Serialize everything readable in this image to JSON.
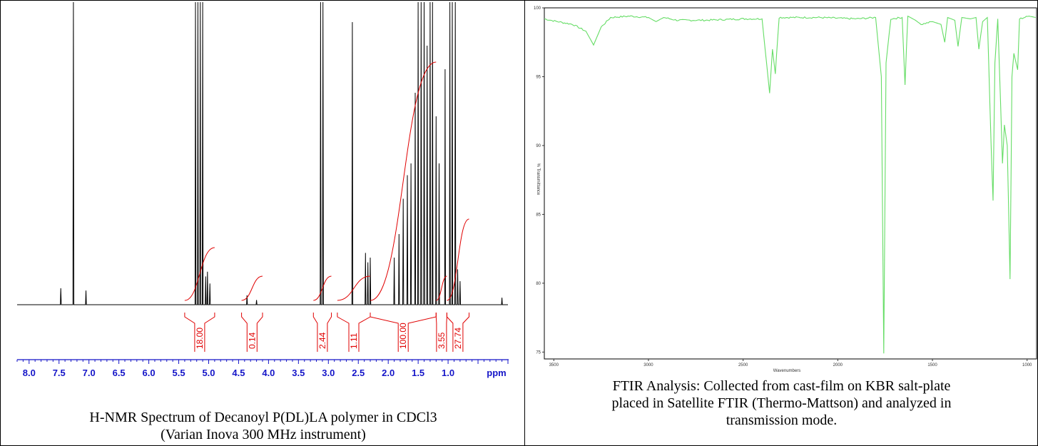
{
  "nmr": {
    "caption_line1": "H-NMR Spectrum of Decanoyl P(DL)LA polymer in CDCl3",
    "caption_line2": "(Varian Inova 300 MHz instrument)"
  },
  "ftir": {
    "caption_line1": "FTIR Analysis: Collected from cast-film on KBR salt-plate",
    "caption_line2": "placed in Satellite FTIR (Thermo-Mattson) and analyzed in",
    "caption_line3": "transmission mode."
  },
  "colors": {
    "nmr_trace": "#000000",
    "integral": "#e00000",
    "nmr_axis": "#1515c8",
    "ftir_trace": "#66dd66"
  },
  "chart_data": [
    {
      "type": "line",
      "xlabel": "ppm",
      "x_reversed": true,
      "xlim": [
        8.2,
        0.0
      ],
      "x_ticks": [
        "8.0",
        "7.5",
        "7.0",
        "6.5",
        "6.0",
        "5.5",
        "5.0",
        "4.5",
        "4.0",
        "3.5",
        "3.0",
        "2.5",
        "2.0",
        "1.5",
        "1.0",
        "ppm"
      ],
      "peaks": [
        {
          "ppm": 7.47,
          "h": 0.07
        },
        {
          "ppm": 7.26,
          "h": 1.3
        },
        {
          "ppm": 7.05,
          "h": 0.06
        },
        {
          "ppm": 5.22,
          "h": 1.3
        },
        {
          "ppm": 5.18,
          "h": 1.3
        },
        {
          "ppm": 5.14,
          "h": 1.3
        },
        {
          "ppm": 5.1,
          "h": 1.3
        },
        {
          "ppm": 5.05,
          "h": 0.12
        },
        {
          "ppm": 5.02,
          "h": 0.14
        },
        {
          "ppm": 4.98,
          "h": 0.09
        },
        {
          "ppm": 4.36,
          "h": 0.04
        },
        {
          "ppm": 4.2,
          "h": 0.02
        },
        {
          "ppm": 3.13,
          "h": 1.3
        },
        {
          "ppm": 3.09,
          "h": 1.3
        },
        {
          "ppm": 2.6,
          "h": 1.2
        },
        {
          "ppm": 2.38,
          "h": 0.22
        },
        {
          "ppm": 2.34,
          "h": 0.18
        },
        {
          "ppm": 2.3,
          "h": 0.2
        },
        {
          "ppm": 1.9,
          "h": 0.2
        },
        {
          "ppm": 1.82,
          "h": 0.3
        },
        {
          "ppm": 1.75,
          "h": 0.45
        },
        {
          "ppm": 1.68,
          "h": 0.55
        },
        {
          "ppm": 1.62,
          "h": 0.6
        },
        {
          "ppm": 1.55,
          "h": 0.9
        },
        {
          "ppm": 1.5,
          "h": 1.3
        },
        {
          "ppm": 1.45,
          "h": 1.3
        },
        {
          "ppm": 1.4,
          "h": 1.3
        },
        {
          "ppm": 1.35,
          "h": 1.1
        },
        {
          "ppm": 1.3,
          "h": 1.3
        },
        {
          "ppm": 1.26,
          "h": 1.3
        },
        {
          "ppm": 1.2,
          "h": 0.8
        },
        {
          "ppm": 1.15,
          "h": 0.6
        },
        {
          "ppm": 1.05,
          "h": 1.0
        },
        {
          "ppm": 0.97,
          "h": 1.3
        },
        {
          "ppm": 0.93,
          "h": 1.3
        },
        {
          "ppm": 0.88,
          "h": 1.3
        },
        {
          "ppm": 0.84,
          "h": 0.15
        },
        {
          "ppm": 0.8,
          "h": 0.1
        },
        {
          "ppm": 0.1,
          "h": 0.03
        }
      ],
      "integrals": [
        {
          "from": 5.4,
          "to": 4.9,
          "value": "18.00"
        },
        {
          "from": 4.45,
          "to": 4.1,
          "value": "0.14"
        },
        {
          "from": 3.25,
          "to": 2.95,
          "value": "2.44"
        },
        {
          "from": 2.85,
          "to": 2.3,
          "value": "1.11"
        },
        {
          "from": 2.3,
          "to": 1.2,
          "value": "100.00"
        },
        {
          "from": 1.2,
          "to": 1.02,
          "value": "3.55"
        },
        {
          "from": 1.02,
          "to": 0.65,
          "value": "27.74"
        }
      ]
    },
    {
      "type": "line",
      "xlabel": "Wavenumbers",
      "ylabel": "% Transmittance",
      "x_reversed": true,
      "xlim": [
        3550,
        950
      ],
      "ylim": [
        74.5,
        100
      ],
      "x_ticks": [
        "3500",
        "3000",
        "2500",
        "2000",
        "1500",
        "1000"
      ],
      "y_ticks": [
        "75",
        "80",
        "85",
        "90",
        "95",
        "100"
      ],
      "points": [
        [
          3550,
          99.2
        ],
        [
          3480,
          99.0
        ],
        [
          3400,
          98.8
        ],
        [
          3330,
          98.3
        ],
        [
          3290,
          97.3
        ],
        [
          3250,
          98.6
        ],
        [
          3200,
          99.3
        ],
        [
          3100,
          99.4
        ],
        [
          3000,
          99.3
        ],
        [
          2960,
          99.0
        ],
        [
          2920,
          99.3
        ],
        [
          2850,
          99.1
        ],
        [
          2700,
          99.1
        ],
        [
          2500,
          99.2
        ],
        [
          2400,
          99.2
        ],
        [
          2360,
          93.8
        ],
        [
          2345,
          97.0
        ],
        [
          2330,
          95.2
        ],
        [
          2310,
          99.3
        ],
        [
          2100,
          99.3
        ],
        [
          1900,
          99.2
        ],
        [
          1800,
          99.3
        ],
        [
          1770,
          95.0
        ],
        [
          1757,
          74.9
        ],
        [
          1745,
          96.0
        ],
        [
          1720,
          99.2
        ],
        [
          1660,
          99.3
        ],
        [
          1645,
          94.4
        ],
        [
          1630,
          99.4
        ],
        [
          1590,
          99.1
        ],
        [
          1560,
          98.8
        ],
        [
          1500,
          99.0
        ],
        [
          1455,
          98.8
        ],
        [
          1435,
          97.5
        ],
        [
          1420,
          99.3
        ],
        [
          1382,
          99.1
        ],
        [
          1365,
          97.2
        ],
        [
          1345,
          99.3
        ],
        [
          1300,
          99.2
        ],
        [
          1270,
          99.3
        ],
        [
          1255,
          97.0
        ],
        [
          1235,
          99.0
        ],
        [
          1210,
          99.3
        ],
        [
          1190,
          90.0
        ],
        [
          1180,
          86.0
        ],
        [
          1170,
          96.0
        ],
        [
          1155,
          99.2
        ],
        [
          1140,
          93.0
        ],
        [
          1130,
          88.7
        ],
        [
          1120,
          91.5
        ],
        [
          1105,
          90.0
        ],
        [
          1090,
          80.3
        ],
        [
          1080,
          95.0
        ],
        [
          1070,
          96.7
        ],
        [
          1050,
          95.5
        ],
        [
          1040,
          99.2
        ],
        [
          990,
          99.4
        ],
        [
          955,
          99.3
        ]
      ]
    }
  ]
}
